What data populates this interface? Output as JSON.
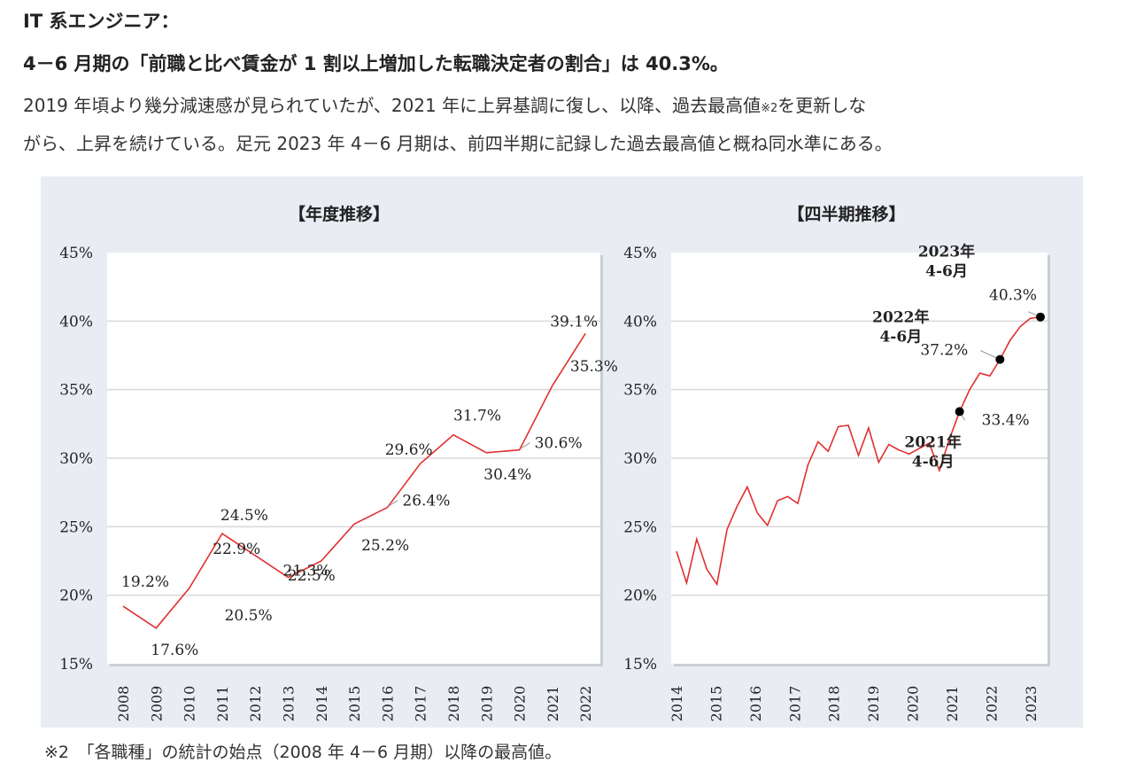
{
  "header": {
    "category": "IT 系エンジニア：",
    "headline": "4－6 月期の「前職と比べ賃金が 1 割以上増加した転職決定者の割合」は 40.3%。",
    "body_line1_a": "2019 年頃より幾分減速感が見られていたが、2021 年に上昇基調に復し、以降、過去最高値",
    "body_line1_note": "※2",
    "body_line1_b": "を更新しな",
    "body_line2": "がら、上昇を続けている。足元 2023 年 4－6 月期は、前四半期に記録した過去最高値と概ね同水準にある。"
  },
  "footnote": "※2　「各職種」の統計の始点（2008 年 4－6 月期）以降の最高値。",
  "colors": {
    "line": "#e03030",
    "panel_bg": "#e9edf3",
    "grid": "#d9d9d9",
    "marker": "#000000"
  },
  "chart_data": [
    {
      "type": "line",
      "title": "【年度推移】",
      "categories": [
        "2008",
        "2009",
        "2010",
        "2011",
        "2012",
        "2013",
        "2014",
        "2015",
        "2016",
        "2017",
        "2018",
        "2019",
        "2020",
        "2021",
        "2022"
      ],
      "values": [
        19.2,
        17.6,
        20.5,
        24.5,
        22.9,
        21.3,
        22.5,
        25.2,
        26.4,
        29.6,
        31.7,
        30.4,
        30.6,
        35.3,
        39.1
      ],
      "data_labels": [
        "19.2%",
        "17.6%",
        "20.5%",
        "24.5%",
        "22.9%",
        "21.3%",
        "22.5%",
        "25.2%",
        "26.4%",
        "29.6%",
        "31.7%",
        "30.4%",
        "30.6%",
        "35.3%",
        "39.1%"
      ],
      "ylim": [
        15,
        45
      ],
      "yticks": [
        "15%",
        "20%",
        "25%",
        "30%",
        "35%",
        "40%",
        "45%"
      ],
      "grid": true
    },
    {
      "type": "line",
      "title": "【四半期推移】",
      "x_tick_labels": [
        "2014",
        "2015",
        "2016",
        "2017",
        "2018",
        "2019",
        "2020",
        "2021",
        "2022",
        "2023"
      ],
      "x_start": 2014.0,
      "x_end": 2023.25,
      "values": [
        23.2,
        20.9,
        24.1,
        21.9,
        20.8,
        24.8,
        26.5,
        27.9,
        26.0,
        25.1,
        26.9,
        27.2,
        26.7,
        29.5,
        31.2,
        30.5,
        32.3,
        32.4,
        30.2,
        32.2,
        29.7,
        31.0,
        30.6,
        30.3,
        30.7,
        31.1,
        29.1,
        31.4,
        33.4,
        35.0,
        36.2,
        36.0,
        37.2,
        38.6,
        39.6,
        40.2,
        40.3
      ],
      "ylim": [
        15,
        45
      ],
      "yticks": [
        "15%",
        "20%",
        "25%",
        "30%",
        "35%",
        "40%",
        "45%"
      ],
      "grid": true,
      "highlights": [
        {
          "label_line1": "2021年",
          "label_line2": "4-6月",
          "value_label": "33.4%",
          "value": 33.4,
          "index": 28
        },
        {
          "label_line1": "2022年",
          "label_line2": "4-6月",
          "value_label": "37.2%",
          "value": 37.2,
          "index": 32
        },
        {
          "label_line1": "2023年",
          "label_line2": "4-6月",
          "value_label": "40.3%",
          "value": 40.3,
          "index": 36
        }
      ]
    }
  ]
}
